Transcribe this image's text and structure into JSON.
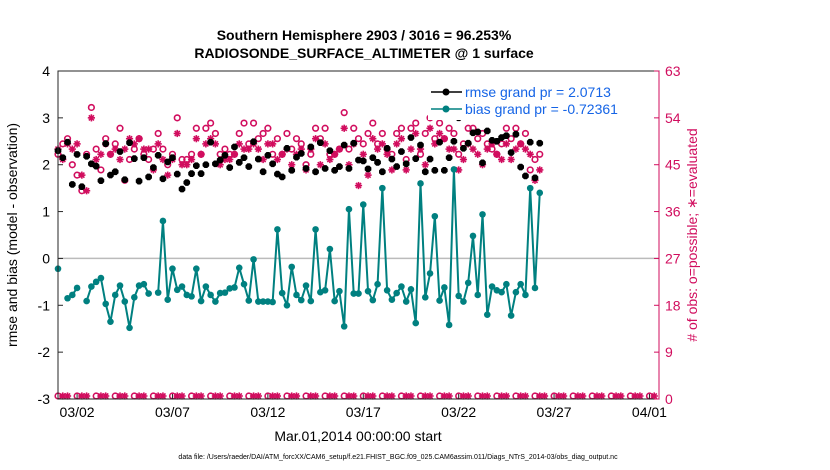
{
  "chart_data": {
    "type": "line",
    "title_line1": "Southern Hemisphere 2903 / 3016 = 96.253%",
    "title_line2": "RADIOSONDE_SURFACE_ALTIMETER @ 1 surface",
    "ylabel_left": "rmse and bias (model - observation)",
    "ylabel_right": "# of obs: o=possible; ∗=evaluated",
    "xlabel": "Mar.01,2014 00:00:00 start",
    "footnote": "data file: /Users/raeder/DAI/ATM_forcXX/CAM6_setup/f.e21.FHIST_BGC.f09_025.CAM6assim.011/Diags_NTrS_2014-03/obs_diag_output.nc",
    "ylim_left": [
      -3,
      4
    ],
    "yticks_left": [
      "-3",
      "-2",
      "-1",
      "0",
      "1",
      "2",
      "3",
      "4"
    ],
    "ylim_right": [
      0,
      63
    ],
    "yticks_right": [
      "0",
      "9",
      "18",
      "27",
      "36",
      "45",
      "54",
      "63"
    ],
    "xlim_days": [
      0,
      31.5
    ],
    "xticks": [
      {
        "day": 1,
        "label": "03/02"
      },
      {
        "day": 6,
        "label": "03/07"
      },
      {
        "day": 11,
        "label": "03/12"
      },
      {
        "day": 16,
        "label": "03/17"
      },
      {
        "day": 21,
        "label": "03/22"
      },
      {
        "day": 26,
        "label": "03/27"
      },
      {
        "day": 31,
        "label": "04/01"
      }
    ],
    "x_step_days": 0.25,
    "legend": {
      "position": "top-right",
      "rmse": "rmse grand pr = 2.0713",
      "bias": "bias grand pr = -0.72361"
    },
    "colors": {
      "rmse": "#000000",
      "bias": "#008080",
      "obs": "#d10d5e",
      "zero_line": "#bbbbbb"
    },
    "series": [
      {
        "name": "rmse",
        "axis": "left",
        "values": [
          2.3,
          2.15,
          2.48,
          1.58,
          2.22,
          1.53,
          2.18,
          2.02,
          1.97,
          1.66,
          2.45,
          1.78,
          1.85,
          2.28,
          1.68,
          2.47,
          2.13,
          1.65,
          2.15,
          1.74,
          1.94,
          2.2,
          1.7,
          2.06,
          2.15,
          1.8,
          1.48,
          1.62,
          1.81,
          1.98,
          1.81,
          2.0,
          2.48,
          2.02,
          2.1,
          2.2,
          1.94,
          2.38,
          2.05,
          2.15,
          1.96,
          2.49,
          2.12,
          1.85,
          2.2,
          2.02,
          1.8,
          1.74,
          2.35,
          1.88,
          2.16,
          2.24,
          1.92,
          2.38,
          1.85,
          2.47,
          1.92,
          2.3,
          1.88,
          1.96,
          2.42,
          1.92,
          2.46,
          2.1,
          2.08,
          1.91,
          2.15,
          2.05,
          1.85,
          2.35,
          2.12,
          1.96,
          2.28,
          2.02,
          2.58,
          2.13,
          2.42,
          1.85,
          2.12,
          1.88,
          2.48,
          1.88,
          2.15,
          2.5,
          3.0,
          2.35,
          2.46,
          2.68,
          2.7,
          2.04,
          2.72,
          2.52,
          2.5,
          2.58,
          2.62,
          2.26,
          2.65,
          1.95,
          1.76,
          2.48,
          1.72,
          2.46
        ]
      },
      {
        "name": "bias",
        "axis": "left",
        "values": [
          -0.22,
          null,
          -0.85,
          -0.78,
          -0.63,
          null,
          -0.91,
          -0.6,
          -0.5,
          -0.42,
          -0.97,
          -1.35,
          -0.78,
          -0.58,
          -0.92,
          -1.48,
          -0.83,
          -0.58,
          -0.55,
          -0.75,
          null,
          -0.73,
          0.8,
          -0.88,
          -0.22,
          -0.67,
          -0.6,
          -0.78,
          -0.81,
          -0.22,
          -0.91,
          -0.6,
          -0.78,
          -0.92,
          -0.74,
          -0.73,
          -0.64,
          -0.62,
          -0.2,
          -0.55,
          -0.9,
          -0.02,
          -0.92,
          -0.92,
          -0.92,
          -0.93,
          0.62,
          -0.74,
          -1.0,
          -0.18,
          -0.78,
          -0.89,
          -0.58,
          -0.91,
          0.62,
          -0.72,
          -0.68,
          0.2,
          -0.91,
          -0.7,
          -1.45,
          1.05,
          -0.75,
          -0.75,
          1.15,
          -0.7,
          -0.89,
          -0.55,
          1.5,
          -0.68,
          -0.88,
          -0.74,
          -0.6,
          -0.92,
          -0.66,
          -1.38,
          1.6,
          -0.83,
          -0.32,
          0.9,
          -0.9,
          -0.62,
          -1.42,
          1.9,
          -0.8,
          -0.92,
          -0.52,
          0.48,
          -0.78,
          0.94,
          -1.2,
          -0.6,
          -0.68,
          -0.72,
          -0.55,
          -1.22,
          -0.72,
          -0.55,
          -0.78,
          1.5,
          -0.63,
          1.4
        ]
      },
      {
        "name": "obs_possible",
        "axis": "right",
        "values": [
          47,
          49,
          50,
          45,
          43,
          40,
          47,
          56,
          48,
          44,
          50,
          47,
          49,
          52,
          42,
          46,
          48,
          50,
          47,
          46,
          48,
          51,
          48,
          45,
          47,
          54,
          46,
          46,
          47,
          52,
          47,
          52,
          53,
          51,
          47,
          48,
          47,
          47,
          51,
          53,
          49,
          53,
          50,
          51,
          52,
          47,
          50,
          47,
          51,
          48,
          50,
          49,
          45,
          47,
          52,
          50,
          52,
          47,
          47,
          48,
          55,
          48,
          52,
          50,
          49,
          51,
          53,
          49,
          51,
          48,
          47,
          51,
          52,
          46,
          52,
          53,
          47,
          51,
          54,
          50,
          53,
          50,
          52,
          51,
          47,
          49,
          52,
          52,
          50,
          51,
          49,
          48,
          47,
          49,
          52,
          50,
          52,
          49,
          51,
          44,
          46,
          47
        ]
      },
      {
        "name": "obs_evaluated",
        "axis": "right",
        "values": [
          48,
          46,
          49,
          48,
          49,
          43,
          40,
          54,
          46,
          47,
          49,
          47,
          48,
          46,
          48,
          50,
          49,
          50,
          48,
          48,
          44,
          49,
          46,
          43,
          46,
          51,
          45,
          45,
          46,
          50,
          47,
          49,
          50,
          49,
          45,
          46,
          46,
          47,
          49,
          48,
          48,
          49,
          48,
          46,
          49,
          49,
          46,
          47,
          48,
          45,
          47,
          48,
          44,
          48,
          50,
          45,
          49,
          46,
          47,
          48,
          52,
          45,
          49,
          41,
          47,
          43,
          50,
          48,
          49,
          47,
          44,
          49,
          50,
          44,
          48,
          51,
          48,
          45,
          52,
          49,
          51,
          50,
          48,
          48,
          44,
          46,
          49,
          48,
          47,
          45,
          48,
          49,
          47,
          46,
          49,
          46,
          48,
          49,
          48,
          47,
          42,
          44
        ]
      }
    ],
    "bottom_markers": {
      "value": 0,
      "possible_days": [
        0,
        1,
        2,
        3,
        4,
        5,
        6,
        7,
        8,
        9,
        10,
        11,
        12,
        13,
        14,
        15,
        16,
        17,
        18,
        19,
        20,
        21,
        22,
        23,
        24,
        25,
        26,
        27,
        28,
        29,
        30,
        31
      ],
      "evaluated_days": [
        0.25,
        0.5,
        1.25,
        1.5,
        2.25,
        2.5,
        3.25,
        3.5,
        4.25,
        4.5,
        5.25,
        5.5,
        6.25,
        6.5,
        7.25,
        7.5,
        8.25,
        8.5,
        9.25,
        9.5,
        10.25,
        10.5,
        11.25,
        11.5,
        12.25,
        12.5,
        13.25,
        13.5,
        14.25,
        14.5,
        15.25,
        15.5,
        16.25,
        16.5,
        17.25,
        17.5,
        18.25,
        18.5,
        19.25,
        19.5,
        20.25,
        20.5,
        21.25,
        21.5,
        22.25,
        22.5,
        23.25,
        23.5,
        24.25,
        24.5,
        25.25,
        25.5,
        26.25,
        26.5,
        27.25,
        27.5,
        28.25,
        28.5,
        29.25,
        29.5,
        30.25,
        30.5,
        31.25
      ]
    }
  }
}
